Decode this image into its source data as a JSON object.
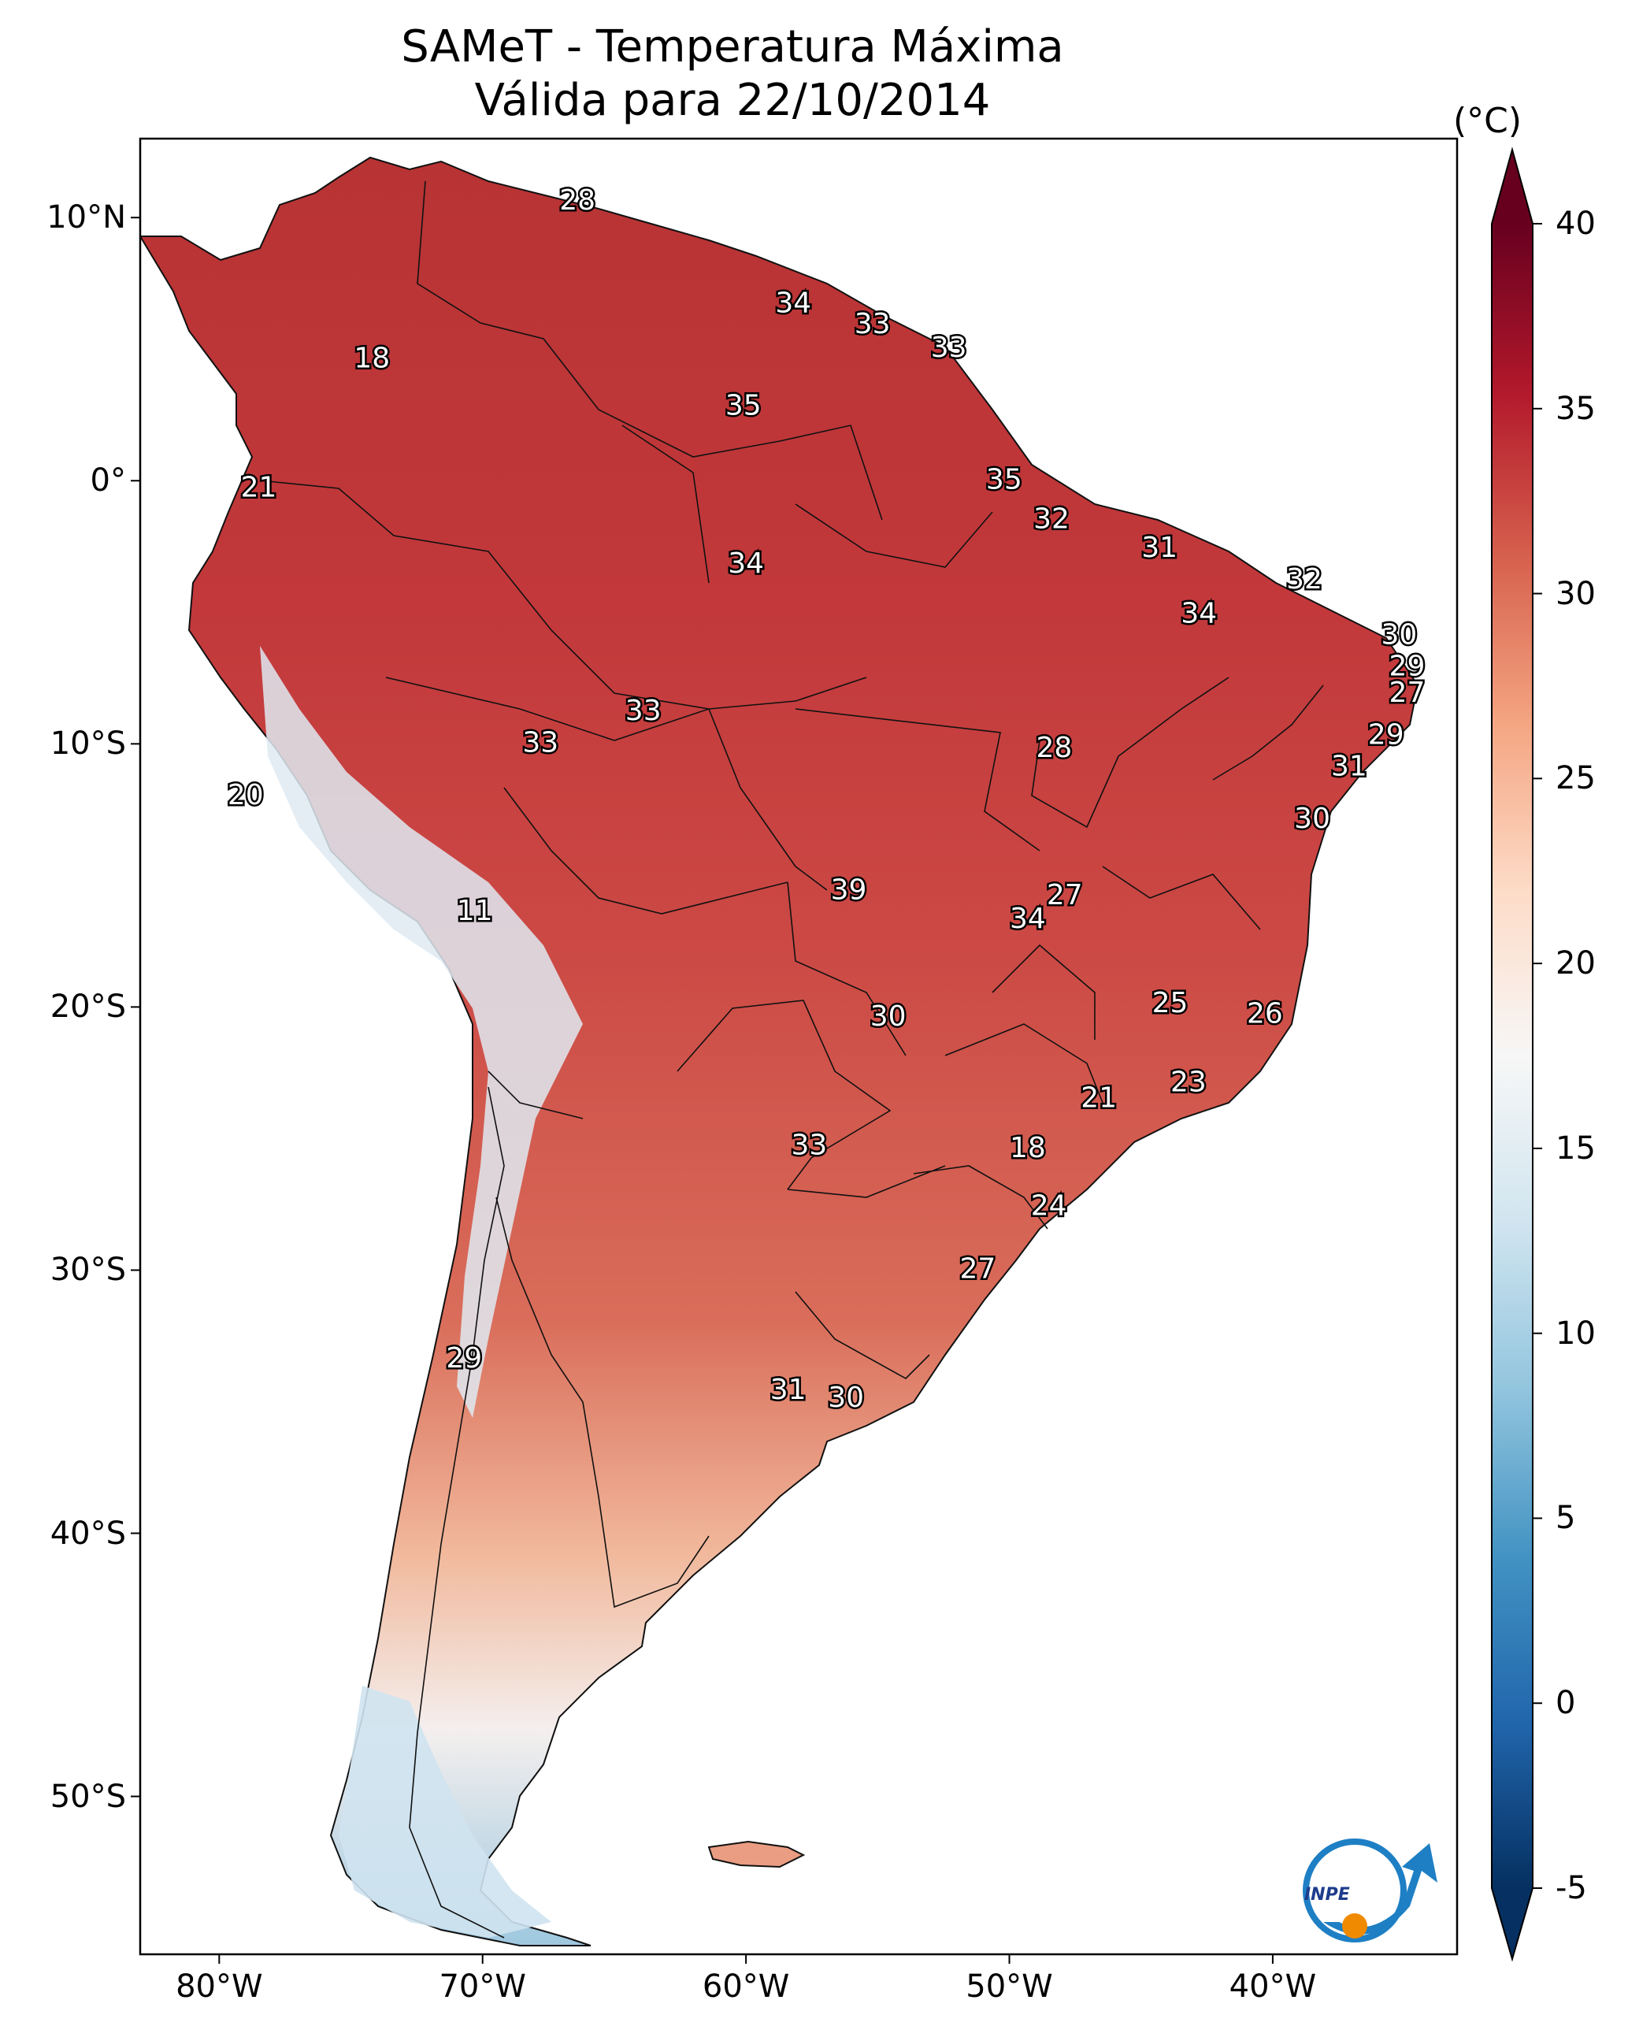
{
  "title_line1": "SAMeT - Temperatura Máxima",
  "title_line2": "Válida para 22/10/2014",
  "colorbar": {
    "unit": "(°C)",
    "min": -5,
    "max": 40,
    "ticks": [
      "40",
      "35",
      "30",
      "25",
      "20",
      "15",
      "10",
      "5",
      "0",
      "-5"
    ],
    "colors": [
      "#053061",
      "#2166ac",
      "#4393c3",
      "#92c5de",
      "#d1e5f0",
      "#f7f7f7",
      "#fddbc7",
      "#f4a582",
      "#d6604d",
      "#b2182b",
      "#67001f"
    ]
  },
  "axes": {
    "lat_ticks": [
      "10°N",
      "0°",
      "10°S",
      "20°S",
      "30°S",
      "40°S",
      "50°S"
    ],
    "lon_ticks": [
      "80°W",
      "70°W",
      "60°W",
      "50°W",
      "40°W"
    ],
    "lon_range": [
      -83,
      -33
    ],
    "lat_range": [
      -56,
      13
    ]
  },
  "station_labels": [
    {
      "text": "28",
      "lon": -66.4,
      "lat": 10.6
    },
    {
      "text": "18",
      "lon": -74.2,
      "lat": 4.6
    },
    {
      "text": "34",
      "lon": -58.2,
      "lat": 6.7
    },
    {
      "text": "33",
      "lon": -55.2,
      "lat": 5.9
    },
    {
      "text": "33",
      "lon": -52.3,
      "lat": 5.0
    },
    {
      "text": "35",
      "lon": -60.1,
      "lat": 2.8
    },
    {
      "text": "21",
      "lon": -78.5,
      "lat": -0.3
    },
    {
      "text": "35",
      "lon": -50.2,
      "lat": 0.0
    },
    {
      "text": "32",
      "lon": -48.4,
      "lat": -1.5
    },
    {
      "text": "31",
      "lon": -44.3,
      "lat": -2.6
    },
    {
      "text": "34",
      "lon": -60.0,
      "lat": -3.2
    },
    {
      "text": "32",
      "lon": -38.8,
      "lat": -3.8
    },
    {
      "text": "34",
      "lon": -42.8,
      "lat": -5.1
    },
    {
      "text": "30",
      "lon": -35.2,
      "lat": -5.9
    },
    {
      "text": "29",
      "lon": -34.9,
      "lat": -7.1
    },
    {
      "text": "27",
      "lon": -34.9,
      "lat": -8.1
    },
    {
      "text": "33",
      "lon": -63.9,
      "lat": -8.8
    },
    {
      "text": "33",
      "lon": -67.8,
      "lat": -10.0
    },
    {
      "text": "28",
      "lon": -48.3,
      "lat": -10.2
    },
    {
      "text": "29",
      "lon": -35.7,
      "lat": -9.7
    },
    {
      "text": "31",
      "lon": -37.1,
      "lat": -10.9
    },
    {
      "text": "20",
      "lon": -79.0,
      "lat": -12.0
    },
    {
      "text": "30",
      "lon": -38.5,
      "lat": -12.9
    },
    {
      "text": "39",
      "lon": -56.1,
      "lat": -15.6
    },
    {
      "text": "27",
      "lon": -47.9,
      "lat": -15.8
    },
    {
      "text": "34",
      "lon": -49.3,
      "lat": -16.7
    },
    {
      "text": "11",
      "lon": -70.3,
      "lat": -16.4
    },
    {
      "text": "25",
      "lon": -43.9,
      "lat": -19.9
    },
    {
      "text": "26",
      "lon": -40.3,
      "lat": -20.3
    },
    {
      "text": "30",
      "lon": -54.6,
      "lat": -20.4
    },
    {
      "text": "23",
      "lon": -43.2,
      "lat": -22.9
    },
    {
      "text": "21",
      "lon": -46.6,
      "lat": -23.5
    },
    {
      "text": "18",
      "lon": -49.3,
      "lat": -25.4
    },
    {
      "text": "33",
      "lon": -57.6,
      "lat": -25.3
    },
    {
      "text": "24",
      "lon": -48.5,
      "lat": -27.6
    },
    {
      "text": "27",
      "lon": -51.2,
      "lat": -30.0
    },
    {
      "text": "29",
      "lon": -70.7,
      "lat": -33.4
    },
    {
      "text": "31",
      "lon": -58.4,
      "lat": -34.6
    },
    {
      "text": "30",
      "lon": -56.2,
      "lat": -34.9
    }
  ],
  "logo_text": "INPE"
}
